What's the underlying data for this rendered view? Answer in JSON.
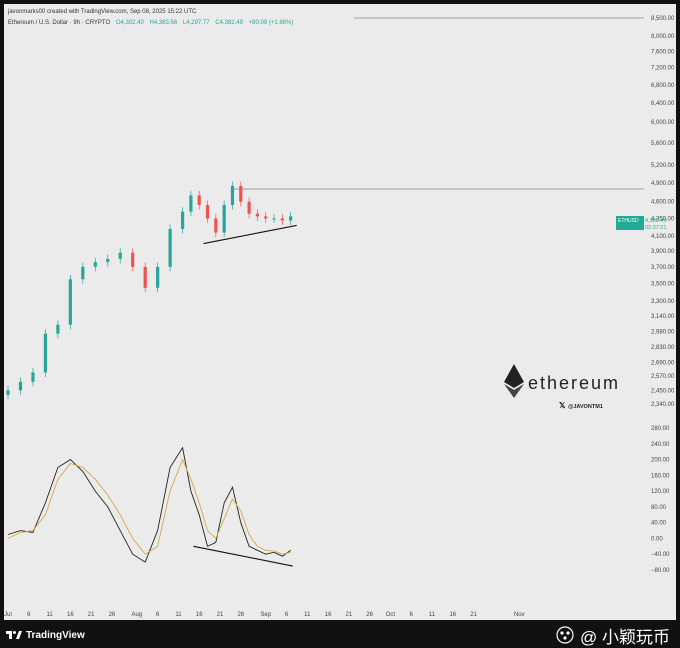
{
  "header": {
    "attribution": "javonmarks00 created with TradingView.com, Sep 08, 2025 15:22 UTC",
    "symbol_line": "Ethereum / U.S. Dollar · 9h · CRYPTO",
    "open_label": "O4,302.40",
    "high_label": "H4,383.56",
    "low_label": "L4,297.77",
    "close_label": "C4,382.49",
    "change_label": "+80.09 (+1.86%)"
  },
  "price_badge": {
    "symbol": "ETHUSD",
    "price": "4,382.49",
    "countdown": "02:37:21"
  },
  "colors": {
    "bull": "#26a69a",
    "bear": "#ef5350",
    "badge": "#22ab94",
    "background": "#ebebeb",
    "frame": "#111111"
  },
  "brand": {
    "name": "ethereum",
    "social_handle": "@JAVONTM1",
    "icon": "ethereum-diamond-icon",
    "social_icon": "x-logo-icon"
  },
  "footer": {
    "tv_label": "TradingView",
    "tv_icon": "tradingview-logo-icon",
    "watermark_text": "@ 小颖玩币",
    "watermark_icon": "dots-logo-icon"
  },
  "chart_data": [
    {
      "type": "candlestick",
      "series": [
        {
          "name": "ETHUSD",
          "x": [
            "Jul 1",
            "Jul 4",
            "Jul 7",
            "Jul 10",
            "Jul 13",
            "Jul 16",
            "Jul 19",
            "Jul 22",
            "Jul 25",
            "Jul 28",
            "Jul 31",
            "Aug 3",
            "Aug 6",
            "Aug 9",
            "Aug 12",
            "Aug 14",
            "Aug 16",
            "Aug 18",
            "Aug 20",
            "Aug 22",
            "Aug 24",
            "Aug 26",
            "Aug 28",
            "Aug 30",
            "Sep 1",
            "Sep 3",
            "Sep 5",
            "Sep 7"
          ],
          "values": [
            2450,
            2520,
            2600,
            2960,
            3050,
            3550,
            3700,
            3760,
            3800,
            3880,
            3700,
            3450,
            3700,
            4200,
            4450,
            4700,
            4550,
            4350,
            4150,
            4550,
            4850,
            4600,
            4420,
            4380,
            4350,
            4350,
            4320,
            4382
          ]
        }
      ],
      "y_ticks": [
        "8,500.00",
        "8,000.00",
        "7,600.00",
        "7,200.00",
        "6,800.00",
        "6,400.00",
        "6,000.00",
        "5,600.00",
        "5,200.00",
        "4,900.00",
        "4,600.00",
        "4,350.00",
        "4,100.00",
        "3,900.00",
        "3,700.00",
        "3,500.00",
        "3,300.00",
        "3,140.00",
        "2,980.00",
        "2,830.00",
        "2,690.00",
        "2,570.00",
        "2,450.00",
        "2,340.00"
      ],
      "x_ticks": [
        "Jul",
        "6",
        "11",
        "16",
        "21",
        "26",
        "Aug",
        "6",
        "11",
        "16",
        "21",
        "26",
        "Sep",
        "6",
        "11",
        "16",
        "21",
        "26",
        "Oct",
        "6",
        "11",
        "16",
        "21",
        "Nov"
      ],
      "horizontal_lines": [
        8500,
        4800
      ],
      "trendline": {
        "from": [
          "Aug 18",
          4000
        ],
        "to": [
          "Sep 7",
          4250
        ]
      },
      "ylim": [
        2340,
        8500
      ],
      "scale": "log",
      "grid": false
    },
    {
      "type": "line",
      "x": [
        "Jul 1",
        "Jul 4",
        "Jul 7",
        "Jul 10",
        "Jul 13",
        "Jul 16",
        "Jul 19",
        "Jul 22",
        "Jul 25",
        "Jul 28",
        "Jul 31",
        "Aug 3",
        "Aug 6",
        "Aug 9",
        "Aug 12",
        "Aug 14",
        "Aug 16",
        "Aug 18",
        "Aug 20",
        "Aug 22",
        "Aug 24",
        "Aug 26",
        "Aug 28",
        "Aug 30",
        "Sep 1",
        "Sep 3",
        "Sep 5",
        "Sep 7"
      ],
      "series": [
        {
          "values": [
            10,
            20,
            15,
            90,
            180,
            200,
            170,
            120,
            80,
            20,
            -40,
            -60,
            20,
            180,
            230,
            120,
            60,
            -20,
            -10,
            90,
            130,
            40,
            -20,
            -30,
            -40,
            -35,
            -45,
            -30
          ]
        },
        {
          "values": [
            0,
            15,
            20,
            60,
            150,
            190,
            180,
            150,
            110,
            60,
            0,
            -40,
            -20,
            120,
            200,
            150,
            90,
            20,
            0,
            50,
            100,
            70,
            10,
            -20,
            -30,
            -32,
            -40,
            -35
          ]
        }
      ],
      "y_ticks": [
        "280.00",
        "240.00",
        "200.00",
        "160.00",
        "120.00",
        "80.00",
        "40.00",
        "0.00",
        "−40.00",
        "−80.00"
      ],
      "trendline": {
        "from": [
          "Aug 18",
          -20
        ],
        "to": [
          "Sep 7",
          -70
        ]
      },
      "ylim": [
        -80,
        280
      ],
      "grid": false
    }
  ]
}
